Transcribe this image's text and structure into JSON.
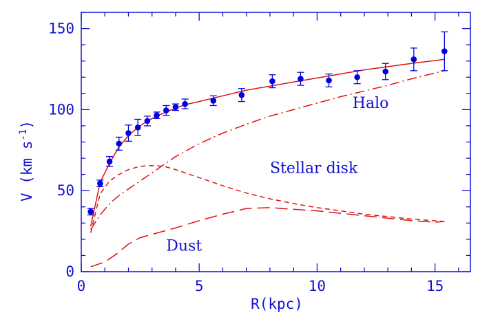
{
  "chart_data": {
    "type": "scatter",
    "title": "",
    "xlabel": "R(kpc)",
    "ylabel_main": "V (km s",
    "ylabel_sup": "-1",
    "ylabel_close": ")",
    "xlim": [
      0,
      16.5
    ],
    "ylim": [
      0,
      160
    ],
    "xticks": [
      0,
      5,
      10,
      15
    ],
    "yticks": [
      0,
      50,
      100,
      150
    ],
    "grid": false,
    "colors": {
      "axis": "#1010d0",
      "points": "#0000e0",
      "curves": "#e01010"
    },
    "points": [
      {
        "x": 0.4,
        "y": 37,
        "err": 2
      },
      {
        "x": 0.8,
        "y": 54.5,
        "err": 2
      },
      {
        "x": 1.2,
        "y": 68,
        "err": 3
      },
      {
        "x": 1.6,
        "y": 79,
        "err": 4
      },
      {
        "x": 2.0,
        "y": 85.5,
        "err": 5
      },
      {
        "x": 2.4,
        "y": 89,
        "err": 5
      },
      {
        "x": 2.8,
        "y": 93,
        "err": 3
      },
      {
        "x": 3.2,
        "y": 96.5,
        "err": 2
      },
      {
        "x": 3.6,
        "y": 99.5,
        "err": 3
      },
      {
        "x": 4.0,
        "y": 101.5,
        "err": 2
      },
      {
        "x": 4.4,
        "y": 103.5,
        "err": 3
      },
      {
        "x": 5.6,
        "y": 105.5,
        "err": 3
      },
      {
        "x": 6.8,
        "y": 109,
        "err": 4
      },
      {
        "x": 8.1,
        "y": 117.5,
        "err": 4
      },
      {
        "x": 9.3,
        "y": 119,
        "err": 4
      },
      {
        "x": 10.5,
        "y": 118,
        "err": 4
      },
      {
        "x": 11.7,
        "y": 120,
        "err": 4
      },
      {
        "x": 12.9,
        "y": 123.5,
        "err": 5
      },
      {
        "x": 14.1,
        "y": 131,
        "err": 7
      },
      {
        "x": 15.4,
        "y": 136,
        "err": 12
      }
    ],
    "series": [
      {
        "style": "solid",
        "x": [
          0.4,
          0.8,
          1.2,
          1.6,
          2.0,
          2.4,
          2.8,
          3.2,
          3.6,
          4.0,
          4.4,
          5.0,
          6.0,
          7.0,
          8.0,
          9.0,
          10.0,
          11.0,
          12.0,
          13.0,
          14.0,
          15.4
        ],
        "y": [
          28,
          55,
          67,
          77,
          84,
          89,
          93,
          96,
          98.5,
          101,
          103,
          105,
          108.5,
          112,
          114.5,
          117,
          119.5,
          122,
          124.5,
          126.5,
          128.5,
          131
        ]
      },
      {
        "style": "dotdash",
        "x": [
          0.4,
          0.8,
          1.2,
          1.6,
          2.0,
          2.5,
          3.0,
          3.5,
          4.0,
          5.0,
          6.0,
          7.0,
          8.0,
          9.0,
          10.0,
          11.0,
          12.0,
          13.0,
          14.0,
          15.4
        ],
        "y": [
          26,
          35,
          42,
          47,
          51,
          56,
          61,
          66,
          71,
          79,
          85.5,
          91,
          96,
          100,
          104,
          108,
          111.5,
          115,
          119,
          124
        ]
      },
      {
        "style": "shortdash",
        "x": [
          0.4,
          0.8,
          1.2,
          1.6,
          2.0,
          2.5,
          3.0,
          3.5,
          4.0,
          5.0,
          6.0,
          7.0,
          8.0,
          9.0,
          10.0,
          11.0,
          12.0,
          13.0,
          14.0,
          15.4
        ],
        "y": [
          24,
          48,
          56,
          60,
          63,
          65,
          65.5,
          65,
          63,
          58,
          53,
          48.5,
          45,
          42,
          39.5,
          37.5,
          35.5,
          34,
          32.5,
          31
        ]
      },
      {
        "style": "longdash",
        "x": [
          0.4,
          1.0,
          1.5,
          2.0,
          2.5,
          3.0,
          4.0,
          5.0,
          6.0,
          7.0,
          8.0,
          9.0,
          10.0,
          11.0,
          12.0,
          13.0,
          14.0,
          15.0,
          15.4
        ],
        "y": [
          3,
          6,
          11,
          17,
          21,
          23,
          27,
          31.5,
          35.5,
          39,
          39.5,
          38.5,
          37.5,
          36,
          34.5,
          33,
          31.5,
          30.5,
          31
        ]
      }
    ],
    "annotations": [
      {
        "text": "Halo",
        "x": 11.5,
        "y": 101
      },
      {
        "text": "Stellar disk",
        "x": 8.0,
        "y": 61
      },
      {
        "text": "Dust",
        "x": 3.6,
        "y": 13
      }
    ]
  }
}
